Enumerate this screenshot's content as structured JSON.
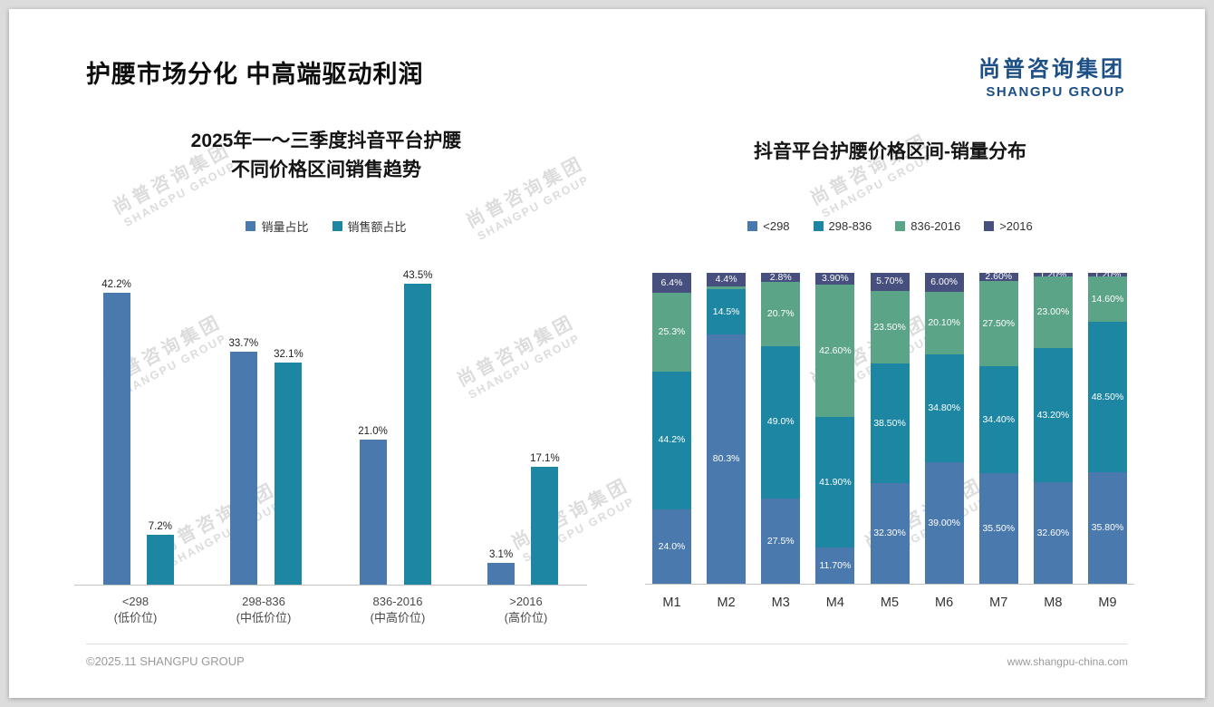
{
  "page": {
    "title": "护腰市场分化 中高端驱动利润",
    "logo": {
      "cn": "尚普咨询集团",
      "en": "SHANGPU GROUP"
    },
    "watermark": {
      "cn": "尚普咨询集团",
      "en": "SHANGPU GROUP"
    },
    "footer": {
      "left": "©2025.11 SHANGPU GROUP",
      "right": "www.shangpu-china.com"
    }
  },
  "colors": {
    "blue": "#4a79ad",
    "teal": "#1d87a3",
    "green": "#5ba487",
    "navy": "#474f7e",
    "logo_navy": "#1c4f86"
  },
  "chart_data": [
    {
      "type": "bar",
      "stacked": false,
      "title": "2025年一～三季度抖音平台护腰 不同价格区间销售趋势",
      "title_lines": [
        "2025年一～三季度抖音平台护腰",
        "不同价格区间销售趋势"
      ],
      "categories": [
        "<298",
        "298-836",
        "836-2016",
        ">2016"
      ],
      "category_sublabels": [
        "(低价位)",
        "(中低价位)",
        "(中高价位)",
        "(高价位)"
      ],
      "series": [
        {
          "name": "销量占比",
          "color": "#4a79ad",
          "values": [
            42.2,
            33.7,
            21.0,
            3.1
          ],
          "labels": [
            "42.2%",
            "33.7%",
            "21.0%",
            "3.1%"
          ]
        },
        {
          "name": "销售额占比",
          "color": "#1d87a3",
          "values": [
            7.2,
            32.1,
            43.5,
            17.1
          ],
          "labels": [
            "7.2%",
            "32.1%",
            "43.5%",
            "17.1%"
          ]
        }
      ],
      "ylim": [
        0,
        45
      ],
      "grid": false,
      "legend_position": "top",
      "value_suffix": "%"
    },
    {
      "type": "bar",
      "stacked": true,
      "title": "抖音平台护腰价格区间-销量分布",
      "categories": [
        "M1",
        "M2",
        "M3",
        "M4",
        "M5",
        "M6",
        "M7",
        "M8",
        "M9"
      ],
      "series": [
        {
          "name": "<298",
          "color": "#4a79ad",
          "values": [
            24.0,
            80.3,
            27.5,
            11.7,
            32.3,
            39.0,
            35.5,
            32.6,
            35.8
          ],
          "labels": [
            "24.0%",
            "80.3%",
            "27.5%",
            "11.70%",
            "32.30%",
            "39.00%",
            "35.50%",
            "32.60%",
            "35.80%"
          ]
        },
        {
          "name": "298-836",
          "color": "#1d87a3",
          "values": [
            44.2,
            14.5,
            49.0,
            41.9,
            38.5,
            34.8,
            34.4,
            43.2,
            48.5
          ],
          "labels": [
            "44.2%",
            "14.5%",
            "49.0%",
            "41.90%",
            "38.50%",
            "34.80%",
            "34.40%",
            "43.20%",
            "48.50%"
          ]
        },
        {
          "name": "836-2016",
          "color": "#5ba487",
          "values": [
            25.3,
            0.8,
            20.7,
            42.6,
            23.5,
            20.1,
            27.5,
            23.0,
            14.6
          ],
          "labels": [
            "25.3%",
            "",
            "20.7%",
            "42.60%",
            "23.50%",
            "20.10%",
            "27.50%",
            "23.00%",
            "14.60%"
          ]
        },
        {
          "name": ">2016",
          "color": "#474f7e",
          "values": [
            6.4,
            4.4,
            2.8,
            3.9,
            5.7,
            6.0,
            2.6,
            1.2,
            1.2
          ],
          "labels": [
            "6.4%",
            "4.4%",
            "2.8%",
            "3.90%",
            "5.70%",
            "6.00%",
            "2.60%",
            "1.20%",
            "1.20%"
          ]
        }
      ],
      "ylim": [
        0,
        100
      ],
      "grid": false,
      "legend_position": "top",
      "value_suffix": "%"
    }
  ]
}
